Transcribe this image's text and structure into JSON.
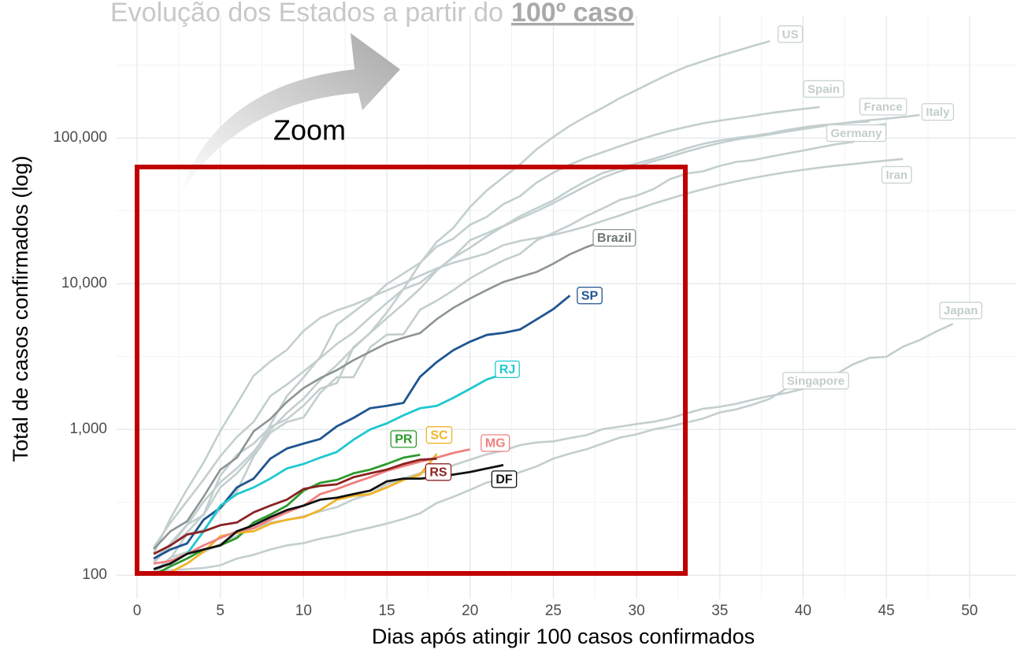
{
  "chart_data": {
    "type": "line",
    "title": "Evolução dos Estados a partir do",
    "title_highlight": "100º caso",
    "annotation": "Zoom",
    "x_label": "Dias após atingir 100 casos confirmados",
    "y_label": "Total de casos confirmados (log)",
    "log_y": true,
    "grid": true,
    "xlim": [
      -1.23,
      52.8
    ],
    "ylim": [
      69,
      690000
    ],
    "xticks": [
      0,
      5,
      10,
      15,
      20,
      25,
      30,
      35,
      40,
      45,
      50
    ],
    "x_minor_ticks": [
      2.5,
      7.5,
      12.5,
      17.5,
      22.5,
      27.5,
      32.5,
      37.5,
      42.5,
      47.5
    ],
    "yticks": [
      100,
      {
        "value": 1000,
        "label": "1,000"
      },
      {
        "value": 10000,
        "label": "10,000"
      },
      {
        "value": 100000,
        "label": "100,000"
      }
    ],
    "y_minor_ticks": [
      316,
      3162,
      31623,
      316228
    ],
    "x": [
      1,
      2,
      3,
      4,
      5,
      6,
      7,
      8,
      9,
      10,
      11,
      12,
      13,
      14,
      15,
      16,
      17,
      18,
      19,
      20,
      21,
      22,
      23,
      24,
      25,
      26,
      27,
      28,
      29,
      30,
      31,
      32,
      33,
      34,
      35,
      36,
      37,
      38,
      39,
      40,
      41,
      42,
      43,
      44,
      45,
      46,
      47,
      48,
      49,
      50
    ],
    "series": [
      {
        "name": "US",
        "color": "#c3cece",
        "values": [
          124,
          158,
          221,
          319,
          435,
          541,
          704,
          994,
          1301,
          1630,
          2183,
          2770,
          3613,
          4596,
          6344,
          9197,
          13779,
          19367,
          24192,
          33592,
          43663,
          53740,
          65778,
          83836,
          101657,
          121478,
          140886,
          161807,
          188172,
          213372,
          243453,
          275586,
          308850,
          337072,
          366667,
          396223,
          429052,
          461437,
          null,
          null,
          null,
          null,
          null,
          null,
          null,
          null,
          null,
          null,
          null,
          null
        ]
      },
      {
        "name": "Spain",
        "color": "#c3cece",
        "values": [
          120,
          165,
          222,
          259,
          400,
          500,
          673,
          1073,
          1695,
          2277,
          3146,
          5232,
          6391,
          7798,
          9942,
          11748,
          13910,
          17963,
          20410,
          25374,
          28768,
          35136,
          39885,
          49515,
          57786,
          65719,
          73235,
          80110,
          87956,
          95923,
          104118,
          112065,
          119199,
          126168,
          131646,
          136675,
          141942,
          148220,
          153222,
          158273,
          163027,
          null,
          null,
          null,
          null,
          null,
          null,
          null,
          null,
          null
        ]
      },
      {
        "name": "Italy",
        "color": "#c3cece",
        "values": [
          155,
          229,
          322,
          453,
          655,
          888,
          1128,
          1694,
          2036,
          2502,
          3089,
          3858,
          4636,
          5883,
          7375,
          9172,
          10149,
          12462,
          15113,
          17660,
          21157,
          24747,
          27980,
          31506,
          35713,
          41035,
          47021,
          53578,
          59138,
          63927,
          69176,
          74386,
          80589,
          86498,
          92472,
          97689,
          101739,
          105792,
          110574,
          115242,
          119827,
          124632,
          128948,
          132547,
          135586,
          139422,
          143626,
          null,
          null,
          null
        ]
      },
      {
        "name": "France",
        "color": "#c3cece",
        "values": [
          100,
          130,
          191,
          204,
          285,
          377,
          653,
          949,
          1126,
          1209,
          1784,
          2281,
          2281,
          3661,
          4469,
          4499,
          6633,
          7652,
          9043,
          10871,
          12612,
          14459,
          16018,
          19856,
          22302,
          25233,
          29155,
          32964,
          37575,
          40174,
          44550,
          52128,
          56989,
          59105,
          64338,
          68605,
          70478,
          74390,
          78167,
          82048,
          86334,
          90676,
          93790,
          120633,
          124869,
          null,
          null,
          null,
          null,
          null
        ]
      },
      {
        "name": "Germany",
        "color": "#c3cece",
        "values": [
          130,
          159,
          196,
          262,
          482,
          670,
          799,
          1040,
          1176,
          1457,
          1908,
          2078,
          3675,
          4585,
          5795,
          7272,
          9257,
          12327,
          15320,
          19848,
          22213,
          24873,
          29056,
          32986,
          37323,
          43938,
          50871,
          57695,
          62095,
          66885,
          71808,
          77872,
          84794,
          91159,
          96092,
          100123,
          103374,
          107663,
          113296,
          118181,
          122171,
          124908,
          127854,
          130072,
          null,
          null,
          null,
          null,
          null,
          null
        ]
      },
      {
        "name": "Iran",
        "color": "#c3cece",
        "values": [
          141,
          245,
          388,
          593,
          978,
          1501,
          2336,
          2922,
          3513,
          4747,
          5823,
          6566,
          7161,
          8042,
          9000,
          10075,
          11364,
          12729,
          13938,
          14991,
          16169,
          18407,
          19644,
          20610,
          21638,
          23049,
          24811,
          27017,
          29406,
          32332,
          35408,
          38309,
          41495,
          44605,
          47593,
          50468,
          53183,
          55743,
          58226,
          60500,
          62589,
          64586,
          66220,
          68192,
          70029,
          71686,
          null,
          null,
          null,
          null
        ]
      },
      {
        "name": "Japan",
        "color": "#c3cece",
        "values": [
          105,
          132,
          144,
          144,
          164,
          186,
          210,
          230,
          239,
          254,
          274,
          293,
          331,
          360,
          420,
          461,
          502,
          530,
          568,
          620,
          675,
          716,
          780,
          814,
          829,
          873,
          914,
          1007,
          1046,
          1089,
          1128,
          1193,
          1291,
          1387,
          1430,
          1500,
          1600,
          1700,
          1780,
          1900,
          2100,
          2400,
          2800,
          3100,
          3150,
          3700,
          4100,
          4700,
          5300,
          null
        ]
      },
      {
        "name": "Singapore",
        "color": "#c3cece",
        "values": [
          106,
          108,
          110,
          112,
          117,
          130,
          138,
          150,
          160,
          166,
          178,
          187,
          200,
          212,
          226,
          243,
          266,
          313,
          345,
          385,
          432,
          455,
          509,
          558,
          631,
          683,
          732,
          802,
          879,
          926,
          1000,
          1049,
          1114,
          1189,
          1309,
          1375,
          1481,
          1623,
          1910,
          2108,
          2299,
          null,
          null,
          null,
          null,
          null,
          null,
          null,
          null,
          null
        ]
      },
      {
        "name": "Brazil",
        "color": "#8c9494",
        "values": [
          151,
          200,
          234,
          346,
          529,
          640,
          970,
          1178,
          1546,
          1924,
          2247,
          2554,
          2985,
          3417,
          3904,
          4256,
          4579,
          5717,
          6836,
          7910,
          9056,
          10278,
          11130,
          12056,
          13717,
          15927,
          17857,
          19638,
          null,
          null,
          null,
          null,
          null,
          null,
          null,
          null,
          null,
          null,
          null,
          null,
          null,
          null,
          null,
          null,
          null,
          null,
          null,
          null,
          null,
          null
        ]
      },
      {
        "name": "SP",
        "color": "#1f5591",
        "values": [
          130,
          150,
          165,
          240,
          290,
          400,
          460,
          630,
          740,
          800,
          860,
          1050,
          1200,
          1400,
          1450,
          1520,
          2300,
          2900,
          3500,
          4000,
          4450,
          4600,
          4850,
          5700,
          6700,
          8300,
          null,
          null,
          null,
          null,
          null,
          null,
          null,
          null,
          null,
          null,
          null,
          null,
          null,
          null,
          null,
          null,
          null,
          null,
          null,
          null,
          null,
          null,
          null,
          null
        ]
      },
      {
        "name": "RJ",
        "color": "#1ec8d0",
        "values": [
          110,
          120,
          140,
          200,
          300,
          360,
          400,
          460,
          540,
          580,
          640,
          700,
          850,
          1000,
          1100,
          1250,
          1400,
          1450,
          1650,
          1900,
          2200,
          2400,
          null,
          null,
          null,
          null,
          null,
          null,
          null,
          null,
          null,
          null,
          null,
          null,
          null,
          null,
          null,
          null,
          null,
          null,
          null,
          null,
          null,
          null,
          null,
          null,
          null,
          null,
          null,
          null
        ]
      },
      {
        "name": "PR",
        "color": "#2e9a2e",
        "values": [
          100,
          115,
          130,
          150,
          160,
          180,
          230,
          260,
          300,
          380,
          430,
          450,
          500,
          530,
          580,
          640,
          670,
          null,
          null,
          null,
          null,
          null,
          null,
          null,
          null,
          null,
          null,
          null,
          null,
          null,
          null,
          null,
          null,
          null,
          null,
          null,
          null,
          null,
          null,
          null,
          null,
          null,
          null,
          null,
          null,
          null,
          null,
          null,
          null,
          null
        ]
      },
      {
        "name": "SC",
        "color": "#f0b429",
        "values": [
          100,
          105,
          120,
          145,
          185,
          195,
          200,
          225,
          240,
          250,
          280,
          330,
          350,
          360,
          400,
          450,
          490,
          680,
          null,
          null,
          null,
          null,
          null,
          null,
          null,
          null,
          null,
          null,
          null,
          null,
          null,
          null,
          null,
          null,
          null,
          null,
          null,
          null,
          null,
          null,
          null,
          null,
          null,
          null,
          null,
          null,
          null,
          null,
          null,
          null
        ]
      },
      {
        "name": "MG",
        "color": "#f08080",
        "values": [
          120,
          125,
          140,
          160,
          180,
          200,
          210,
          240,
          270,
          300,
          360,
          390,
          430,
          470,
          520,
          560,
          600,
          640,
          690,
          730,
          null,
          null,
          null,
          null,
          null,
          null,
          null,
          null,
          null,
          null,
          null,
          null,
          null,
          null,
          null,
          null,
          null,
          null,
          null,
          null,
          null,
          null,
          null,
          null,
          null,
          null,
          null,
          null,
          null,
          null
        ]
      },
      {
        "name": "RS",
        "color": "#8b2323",
        "values": [
          140,
          160,
          190,
          200,
          220,
          230,
          270,
          300,
          330,
          390,
          410,
          420,
          470,
          500,
          530,
          580,
          620,
          630,
          null,
          null,
          null,
          null,
          null,
          null,
          null,
          null,
          null,
          null,
          null,
          null,
          null,
          null,
          null,
          null,
          null,
          null,
          null,
          null,
          null,
          null,
          null,
          null,
          null,
          null,
          null,
          null,
          null,
          null,
          null,
          null
        ]
      },
      {
        "name": "DF",
        "color": "#111111",
        "values": [
          110,
          120,
          140,
          150,
          160,
          200,
          220,
          250,
          280,
          300,
          330,
          340,
          360,
          380,
          440,
          460,
          460,
          470,
          490,
          510,
          540,
          570,
          null,
          null,
          null,
          null,
          null,
          null,
          null,
          null,
          null,
          null,
          null,
          null,
          null,
          null,
          null,
          null,
          null,
          null,
          null,
          null,
          null,
          null,
          null,
          null,
          null,
          null,
          null,
          null
        ]
      }
    ]
  }
}
